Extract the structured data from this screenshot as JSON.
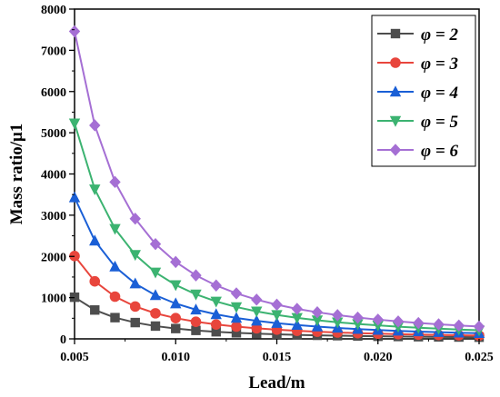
{
  "chart_data": {
    "type": "line",
    "xlabel": "Lead/m",
    "ylabel": "Mass ratio/μ1",
    "xlim": [
      0.005,
      0.025
    ],
    "ylim": [
      0,
      8000
    ],
    "xticks": [
      "0.005",
      "0.010",
      "0.015",
      "0.020",
      "0.025"
    ],
    "yticks": [
      "0",
      "1000",
      "2000",
      "3000",
      "4000",
      "5000",
      "6000",
      "7000",
      "8000"
    ],
    "legend_position": "top-right",
    "x": [
      0.005,
      0.006,
      0.007,
      0.008,
      0.009,
      0.01,
      0.011,
      0.012,
      0.013,
      0.014,
      0.015,
      0.016,
      0.017,
      0.018,
      0.019,
      0.02,
      0.021,
      0.022,
      0.023,
      0.024,
      0.025
    ],
    "series": [
      {
        "name": "φ = 2",
        "color": "#4d4d4d",
        "marker": "square",
        "values": [
          1010,
          700,
          515,
          395,
          310,
          250,
          205,
          172,
          147,
          127,
          110,
          97,
          86,
          77,
          69,
          62,
          57,
          52,
          48,
          44,
          40
        ]
      },
      {
        "name": "φ = 3",
        "color": "#e8453c",
        "marker": "circle",
        "values": [
          2010,
          1395,
          1025,
          785,
          620,
          503,
          415,
          349,
          298,
          257,
          224,
          196,
          174,
          155,
          139,
          126,
          114,
          104,
          95,
          87,
          80
        ]
      },
      {
        "name": "φ = 4",
        "color": "#1a5fd6",
        "marker": "triangle-up",
        "values": [
          3430,
          2380,
          1750,
          1340,
          1058,
          857,
          708,
          595,
          507,
          437,
          381,
          335,
          297,
          265,
          237,
          214,
          194,
          177,
          162,
          149,
          137
        ]
      },
      {
        "name": "φ = 5",
        "color": "#3cb371",
        "marker": "triangle-down",
        "values": [
          5230,
          3630,
          2670,
          2040,
          1612,
          1307,
          1080,
          907,
          773,
          667,
          581,
          510,
          452,
          403,
          362,
          327,
          296,
          270,
          247,
          227,
          209
        ]
      },
      {
        "name": "φ = 6",
        "color": "#a56fd4",
        "marker": "diamond",
        "values": [
          7460,
          5180,
          3805,
          2915,
          2300,
          1865,
          1540,
          1295,
          1104,
          951,
          830,
          728,
          646,
          576,
          517,
          467,
          423,
          385,
          353,
          324,
          299
        ]
      }
    ]
  }
}
